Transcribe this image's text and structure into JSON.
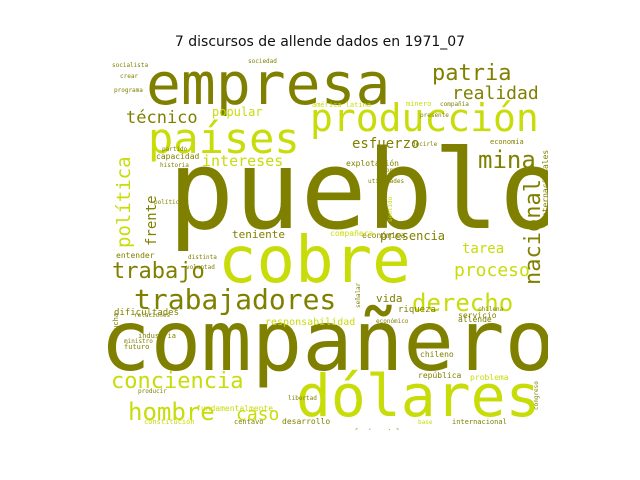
{
  "chart_data": {
    "type": "wordcloud",
    "title": "7 discursos de allende dados en 1971_07",
    "colors": {
      "dark": "#808000",
      "light": "#c8dc0a",
      "mid": "#a8b400"
    },
    "words": [
      {
        "text": "pueblo",
        "weight": 100,
        "tone": "dark"
      },
      {
        "text": "compañero",
        "weight": 92,
        "tone": "dark"
      },
      {
        "text": "empresa",
        "weight": 74,
        "tone": "dark"
      },
      {
        "text": "cobre",
        "weight": 78,
        "tone": "light"
      },
      {
        "text": "dólares",
        "weight": 62,
        "tone": "light"
      },
      {
        "text": "países",
        "weight": 48,
        "tone": "light"
      },
      {
        "text": "producción",
        "weight": 44,
        "tone": "light"
      },
      {
        "text": "trabajadores",
        "weight": 36,
        "tone": "dark"
      },
      {
        "text": "hombre",
        "weight": 30,
        "tone": "light"
      },
      {
        "text": "conciencia",
        "weight": 27,
        "tone": "light"
      },
      {
        "text": "derecho",
        "weight": 29,
        "tone": "light"
      },
      {
        "text": "trabajo",
        "weight": 26,
        "tone": "dark"
      },
      {
        "text": "patria",
        "weight": 26,
        "tone": "dark"
      },
      {
        "text": "mina",
        "weight": 27,
        "tone": "dark"
      },
      {
        "text": "nacional",
        "weight": 24,
        "tone": "dark"
      },
      {
        "text": "realidad",
        "weight": 22,
        "tone": "dark"
      },
      {
        "text": "política",
        "weight": 22,
        "tone": "light"
      },
      {
        "text": "proceso",
        "weight": 21,
        "tone": "light"
      },
      {
        "text": "técnico",
        "weight": 20,
        "tone": "dark"
      },
      {
        "text": "caso",
        "weight": 20,
        "tone": "light"
      },
      {
        "text": "intereses",
        "weight": 17,
        "tone": "light"
      },
      {
        "text": "esfuerzo",
        "weight": 16,
        "tone": "dark"
      },
      {
        "text": "tarea",
        "weight": 16,
        "tone": "light"
      },
      {
        "text": "frente",
        "weight": 15,
        "tone": "dark"
      },
      {
        "text": "presencia",
        "weight": 13,
        "tone": "dark"
      },
      {
        "text": "popular",
        "weight": 13,
        "tone": "light"
      },
      {
        "text": "teniente",
        "weight": 12,
        "tone": "dark"
      },
      {
        "text": "vida",
        "weight": 12,
        "tone": "dark"
      },
      {
        "text": "responsabilidad",
        "weight": 10,
        "tone": "light"
      },
      {
        "text": "fundamentalmente",
        "weight": 9,
        "tone": "light"
      },
      {
        "text": "dificultades",
        "weight": 9,
        "tone": "dark"
      },
      {
        "text": "internacionales",
        "weight": 9,
        "tone": "dark"
      },
      {
        "text": "riqueza",
        "weight": 9,
        "tone": "dark"
      },
      {
        "text": "económica",
        "weight": 9,
        "tone": "dark"
      },
      {
        "text": "explotación",
        "weight": 8,
        "tone": "dark"
      },
      {
        "text": "capacidad",
        "weight": 8,
        "tone": "dark"
      },
      {
        "text": "entender",
        "weight": 8,
        "tone": "dark"
      },
      {
        "text": "allende",
        "weight": 8,
        "tone": "dark"
      },
      {
        "text": "compañera",
        "weight": 8,
        "tone": "light"
      },
      {
        "text": "problema",
        "weight": 8,
        "tone": "light"
      },
      {
        "text": "república",
        "weight": 8,
        "tone": "dark"
      },
      {
        "text": "chileno",
        "weight": 8,
        "tone": "dark"
      },
      {
        "text": "servicio",
        "weight": 8,
        "tone": "dark"
      },
      {
        "text": "desarrollo",
        "weight": 7,
        "tone": "dark"
      },
      {
        "text": "centavo",
        "weight": 7,
        "tone": "dark"
      },
      {
        "text": "fundamental",
        "weight": 7,
        "tone": "dark"
      },
      {
        "text": "internacional",
        "weight": 7,
        "tone": "dark"
      },
      {
        "text": "constitución",
        "weight": 7,
        "tone": "light"
      },
      {
        "text": "industria",
        "weight": 7,
        "tone": "dark"
      },
      {
        "text": "futuro",
        "weight": 7,
        "tone": "dark"
      },
      {
        "text": "minero",
        "weight": 7,
        "tone": "light"
      },
      {
        "text": "economía",
        "weight": 7,
        "tone": "dark"
      },
      {
        "text": "américa latina",
        "weight": 7,
        "tone": "light"
      },
      {
        "text": "compañía",
        "weight": 6,
        "tone": "dark"
      },
      {
        "text": "obrero",
        "weight": 6,
        "tone": "dark"
      },
      {
        "text": "partido",
        "weight": 6,
        "tone": "dark"
      },
      {
        "text": "lucha",
        "weight": 7,
        "tone": "dark"
      },
      {
        "text": "base",
        "weight": 6,
        "tone": "light"
      },
      {
        "text": "congreso",
        "weight": 6,
        "tone": "dark"
      },
      {
        "text": "ministro",
        "weight": 6,
        "tone": "dark"
      },
      {
        "text": "voluntad",
        "weight": 6,
        "tone": "dark"
      },
      {
        "text": "relaciones",
        "weight": 6,
        "tone": "dark"
      },
      {
        "text": "socialista",
        "weight": 6,
        "tone": "dark"
      },
      {
        "text": "programa",
        "weight": 6,
        "tone": "dark"
      },
      {
        "text": "presente",
        "weight": 6,
        "tone": "dark"
      },
      {
        "text": "sociedad",
        "weight": 6,
        "tone": "dark"
      },
      {
        "text": "historia",
        "weight": 6,
        "tone": "dark"
      },
      {
        "text": "señalar",
        "weight": 6,
        "tone": "dark"
      },
      {
        "text": "utilidades",
        "weight": 6,
        "tone": "dark"
      },
      {
        "text": "económico",
        "weight": 6,
        "tone": "dark"
      },
      {
        "text": "sentido",
        "weight": 6,
        "tone": "light"
      },
      {
        "text": "chilena",
        "weight": 6,
        "tone": "dark"
      },
      {
        "text": "crear",
        "weight": 6,
        "tone": "dark"
      },
      {
        "text": "distinta",
        "weight": 6,
        "tone": "dark"
      },
      {
        "text": "político",
        "weight": 6,
        "tone": "dark"
      },
      {
        "text": "libertad",
        "weight": 6,
        "tone": "dark"
      },
      {
        "text": "producir",
        "weight": 6,
        "tone": "dark"
      },
      {
        "text": "decirle",
        "weight": 6,
        "tone": "dark"
      }
    ]
  }
}
